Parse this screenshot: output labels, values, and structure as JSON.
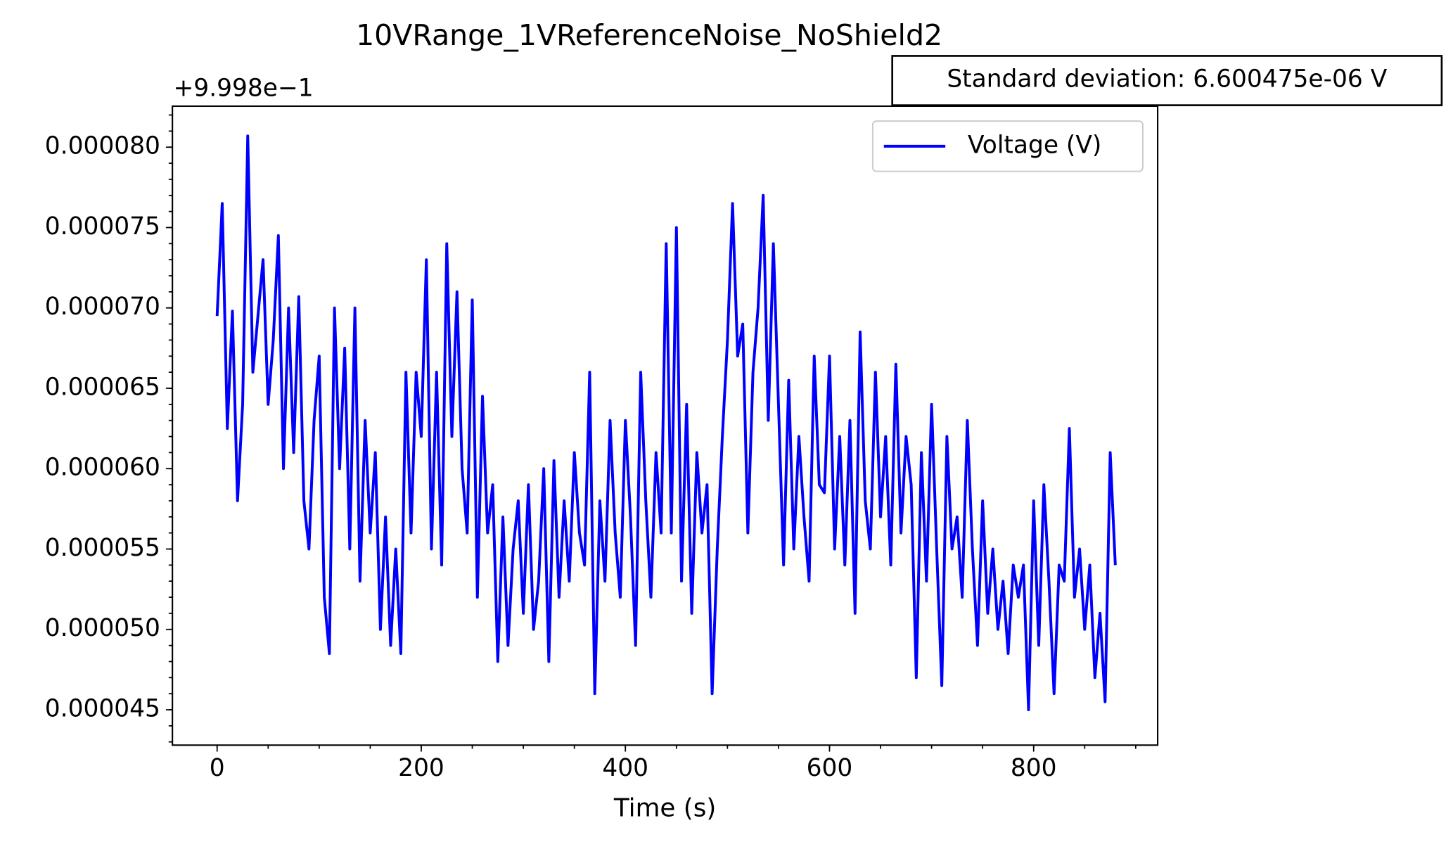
{
  "chart_data": {
    "type": "line",
    "title": "10VRange_1VReferenceNoise_NoShield2",
    "x_label": "Time (s)",
    "y_offset_label": "+9.998e−1",
    "annotation": "Standard deviation: 6.600475e-06 V",
    "legend": "upper right",
    "x": [
      0,
      5,
      10,
      15,
      20,
      25,
      30,
      35,
      40,
      45,
      50,
      55,
      60,
      65,
      70,
      75,
      80,
      85,
      90,
      95,
      100,
      105,
      110,
      115,
      120,
      125,
      130,
      135,
      140,
      145,
      150,
      155,
      160,
      165,
      170,
      175,
      180,
      185,
      190,
      195,
      200,
      205,
      210,
      215,
      220,
      225,
      230,
      235,
      240,
      245,
      250,
      255,
      260,
      265,
      270,
      275,
      280,
      285,
      290,
      295,
      300,
      305,
      310,
      315,
      320,
      325,
      330,
      335,
      340,
      345,
      350,
      355,
      360,
      365,
      370,
      375,
      380,
      385,
      390,
      395,
      400,
      405,
      410,
      415,
      420,
      425,
      430,
      435,
      440,
      445,
      450,
      455,
      460,
      465,
      470,
      475,
      480,
      485,
      490,
      495,
      500,
      505,
      510,
      515,
      520,
      525,
      530,
      535,
      540,
      545,
      550,
      555,
      560,
      565,
      570,
      575,
      580,
      585,
      590,
      595,
      600,
      605,
      610,
      615,
      620,
      625,
      630,
      635,
      640,
      645,
      650,
      655,
      660,
      665,
      670,
      675,
      680,
      685,
      690,
      695,
      700,
      705,
      710,
      715,
      720,
      725,
      730,
      735,
      740,
      745,
      750,
      755,
      760,
      765,
      770,
      775,
      780,
      785,
      790,
      795,
      800,
      805,
      810,
      815,
      820,
      825,
      830,
      835,
      840,
      845,
      850,
      855,
      860,
      865,
      870,
      875,
      880
    ],
    "series": [
      {
        "name": "Voltage (V)",
        "color": "#0000ff",
        "values": [
          6.95e-05,
          7.65e-05,
          6.25e-05,
          6.98e-05,
          5.8e-05,
          6.4e-05,
          8.07e-05,
          6.6e-05,
          6.95e-05,
          7.3e-05,
          6.4e-05,
          6.8e-05,
          7.45e-05,
          6e-05,
          7e-05,
          6.1e-05,
          7.07e-05,
          5.8e-05,
          5.5e-05,
          6.3e-05,
          6.7e-05,
          5.2e-05,
          4.85e-05,
          7e-05,
          6e-05,
          6.75e-05,
          5.5e-05,
          7e-05,
          5.3e-05,
          6.3e-05,
          5.6e-05,
          6.1e-05,
          5e-05,
          5.7e-05,
          4.9e-05,
          5.5e-05,
          4.85e-05,
          6.6e-05,
          5.6e-05,
          6.6e-05,
          6.2e-05,
          7.3e-05,
          5.5e-05,
          6.6e-05,
          5.4e-05,
          7.4e-05,
          6.2e-05,
          7.1e-05,
          6e-05,
          5.6e-05,
          7.05e-05,
          5.2e-05,
          6.45e-05,
          5.6e-05,
          5.9e-05,
          4.8e-05,
          5.7e-05,
          4.9e-05,
          5.5e-05,
          5.8e-05,
          5.1e-05,
          5.9e-05,
          5e-05,
          5.3e-05,
          6e-05,
          4.8e-05,
          6.05e-05,
          5.2e-05,
          5.8e-05,
          5.3e-05,
          6.1e-05,
          5.6e-05,
          5.4e-05,
          6.6e-05,
          4.6e-05,
          5.8e-05,
          5.3e-05,
          6.3e-05,
          5.6e-05,
          5.2e-05,
          6.3e-05,
          5.7e-05,
          4.9e-05,
          6.6e-05,
          5.8e-05,
          5.2e-05,
          6.1e-05,
          5.6e-05,
          7.4e-05,
          5.6e-05,
          7.5e-05,
          5.3e-05,
          6.4e-05,
          5.1e-05,
          6.1e-05,
          5.6e-05,
          5.9e-05,
          4.6e-05,
          5.5e-05,
          6.2e-05,
          6.8e-05,
          7.65e-05,
          6.7e-05,
          6.9e-05,
          5.6e-05,
          6.6e-05,
          7e-05,
          7.7e-05,
          6.3e-05,
          7.4e-05,
          6.4e-05,
          5.4e-05,
          6.55e-05,
          5.5e-05,
          6.2e-05,
          5.7e-05,
          5.3e-05,
          6.7e-05,
          5.9e-05,
          5.85e-05,
          6.7e-05,
          5.5e-05,
          6.2e-05,
          5.4e-05,
          6.3e-05,
          5.1e-05,
          6.85e-05,
          5.8e-05,
          5.5e-05,
          6.6e-05,
          5.7e-05,
          6.2e-05,
          5.4e-05,
          6.65e-05,
          5.6e-05,
          6.2e-05,
          5.9e-05,
          4.7e-05,
          6.1e-05,
          5.3e-05,
          6.4e-05,
          5.5e-05,
          4.65e-05,
          6.2e-05,
          5.5e-05,
          5.7e-05,
          5.2e-05,
          6.3e-05,
          5.5e-05,
          4.9e-05,
          5.8e-05,
          5.1e-05,
          5.5e-05,
          5e-05,
          5.3e-05,
          4.85e-05,
          5.4e-05,
          5.2e-05,
          5.4e-05,
          4.5e-05,
          5.8e-05,
          4.9e-05,
          5.9e-05,
          5.3e-05,
          4.6e-05,
          5.4e-05,
          5.3e-05,
          6.25e-05,
          5.2e-05,
          5.5e-05,
          5e-05,
          5.4e-05,
          4.7e-05,
          5.1e-05,
          4.55e-05,
          6.1e-05,
          5.4e-05
        ]
      }
    ],
    "xlim": [
      -43.8,
      921.5
    ],
    "ylim": [
      4.28e-05,
      8.255e-05
    ],
    "xticks": [
      0,
      200,
      400,
      600,
      800
    ],
    "yticks": [
      {
        "value": 4.5e-05,
        "label": "0.000045"
      },
      {
        "value": 5e-05,
        "label": "0.000050"
      },
      {
        "value": 5.5e-05,
        "label": "0.000055"
      },
      {
        "value": 6e-05,
        "label": "0.000060"
      },
      {
        "value": 6.5e-05,
        "label": "0.000065"
      },
      {
        "value": 7e-05,
        "label": "0.000070"
      },
      {
        "value": 7.5e-05,
        "label": "0.000075"
      },
      {
        "value": 8e-05,
        "label": "0.000080"
      }
    ],
    "grid": false
  }
}
